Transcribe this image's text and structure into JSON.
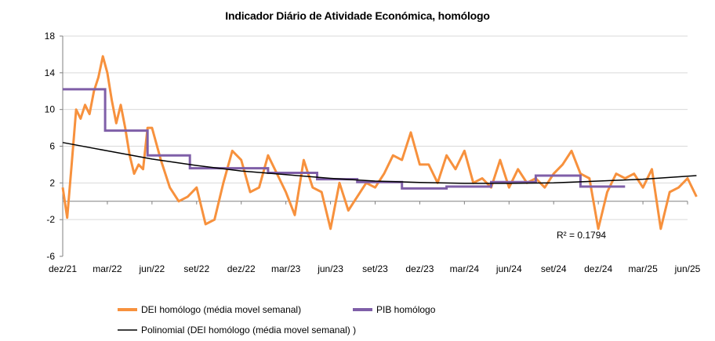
{
  "chart_data": {
    "type": "line",
    "title": "Indicador Diário de Atividade Económica, homólogo",
    "xlabel": "",
    "ylabel": "",
    "ylim": [
      -6,
      18
    ],
    "yticks": [
      -6,
      -2,
      2,
      6,
      10,
      14,
      18
    ],
    "x_tick_labels": [
      "dez/21",
      "mar/22",
      "jun/22",
      "set/22",
      "dez/22",
      "mar/23",
      "jun/23",
      "set/23",
      "dez/23",
      "mar/24",
      "jun/24",
      "set/24",
      "dez/24",
      "mar/25",
      "jun/25"
    ],
    "grid": "horizontal",
    "legend_position": "bottom",
    "annotation": "R² = 0.1794",
    "colors": {
      "dei": "#F7913D",
      "pib": "#7F5FA8",
      "poly": "#000000",
      "grid": "#d9d9d9"
    },
    "series": [
      {
        "name": "DEI homólogo (média movel semanal)",
        "style": "line",
        "x": [
          0,
          0.1,
          0.2,
          0.3,
          0.4,
          0.5,
          0.6,
          0.7,
          0.8,
          0.9,
          1,
          1.1,
          1.2,
          1.3,
          1.4,
          1.5,
          1.6,
          1.7,
          1.8,
          1.9,
          2,
          2.2,
          2.4,
          2.6,
          2.8,
          3,
          3.2,
          3.4,
          3.6,
          3.8,
          4,
          4.2,
          4.4,
          4.6,
          4.8,
          5,
          5.2,
          5.4,
          5.6,
          5.8,
          6,
          6.2,
          6.4,
          6.6,
          6.8,
          7,
          7.2,
          7.4,
          7.6,
          7.8,
          8,
          8.2,
          8.4,
          8.6,
          8.8,
          9,
          9.2,
          9.4,
          9.6,
          9.8,
          10,
          10.2,
          10.4,
          10.6,
          10.8,
          11,
          11.2,
          11.4,
          11.6,
          11.8,
          12,
          12.2,
          12.4,
          12.6,
          12.8,
          13,
          13.2,
          13.4,
          13.6,
          13.8,
          14,
          14.2
        ],
        "y": [
          1.5,
          -1.8,
          4,
          10,
          9,
          10.5,
          9.5,
          12,
          13.5,
          15.8,
          14,
          11,
          8.5,
          10.5,
          8,
          5,
          3,
          4,
          3.5,
          8,
          8,
          4.5,
          1.5,
          0,
          0.5,
          1.5,
          -2.5,
          -2,
          2,
          5.5,
          4.5,
          1,
          1.5,
          5,
          3,
          1,
          -1.5,
          4.5,
          1.5,
          1,
          -3,
          2,
          -1,
          0.5,
          2,
          1.5,
          3,
          5,
          4.5,
          7.5,
          4,
          4,
          2,
          5,
          3.5,
          5.5,
          2,
          2.5,
          1.5,
          4.5,
          1.5,
          3.5,
          2,
          2.5,
          1.5,
          3,
          4,
          5.5,
          3,
          2.5,
          -3,
          1,
          3,
          2.5,
          3,
          1.5,
          3.5,
          -3,
          1,
          1.5,
          2.5,
          0.5
        ],
        "y_unit": "%"
      },
      {
        "name": "PIB homólogo",
        "style": "step",
        "segments": [
          {
            "x0": 0,
            "x1": 0.95,
            "y": 12.2
          },
          {
            "x0": 0.95,
            "x1": 1.9,
            "y": 7.7
          },
          {
            "x0": 1.9,
            "x1": 2.85,
            "y": 5
          },
          {
            "x0": 2.85,
            "x1": 4.6,
            "y": 3.6
          },
          {
            "x0": 4.6,
            "x1": 5.7,
            "y": 3.1
          },
          {
            "x0": 5.7,
            "x1": 6.6,
            "y": 2.4
          },
          {
            "x0": 6.6,
            "x1": 7.6,
            "y": 2.1
          },
          {
            "x0": 7.6,
            "x1": 8.6,
            "y": 1.4
          },
          {
            "x0": 8.6,
            "x1": 9.6,
            "y": 1.6
          },
          {
            "x0": 9.6,
            "x1": 10.6,
            "y": 2.1
          },
          {
            "x0": 10.6,
            "x1": 11.6,
            "y": 2.8
          },
          {
            "x0": 11.6,
            "x1": 12.6,
            "y": 1.6
          }
        ]
      },
      {
        "name": "Polinomial (DEI homólogo (média movel semanal) )",
        "style": "trend",
        "x": [
          0,
          1,
          2,
          3,
          4,
          5,
          6,
          7,
          8,
          9,
          10,
          11,
          12,
          13,
          14.2
        ],
        "y": [
          6.4,
          5.5,
          4.6,
          3.9,
          3.3,
          2.9,
          2.5,
          2.2,
          2.05,
          1.95,
          1.95,
          2,
          2.2,
          2.4,
          2.8
        ]
      }
    ]
  }
}
